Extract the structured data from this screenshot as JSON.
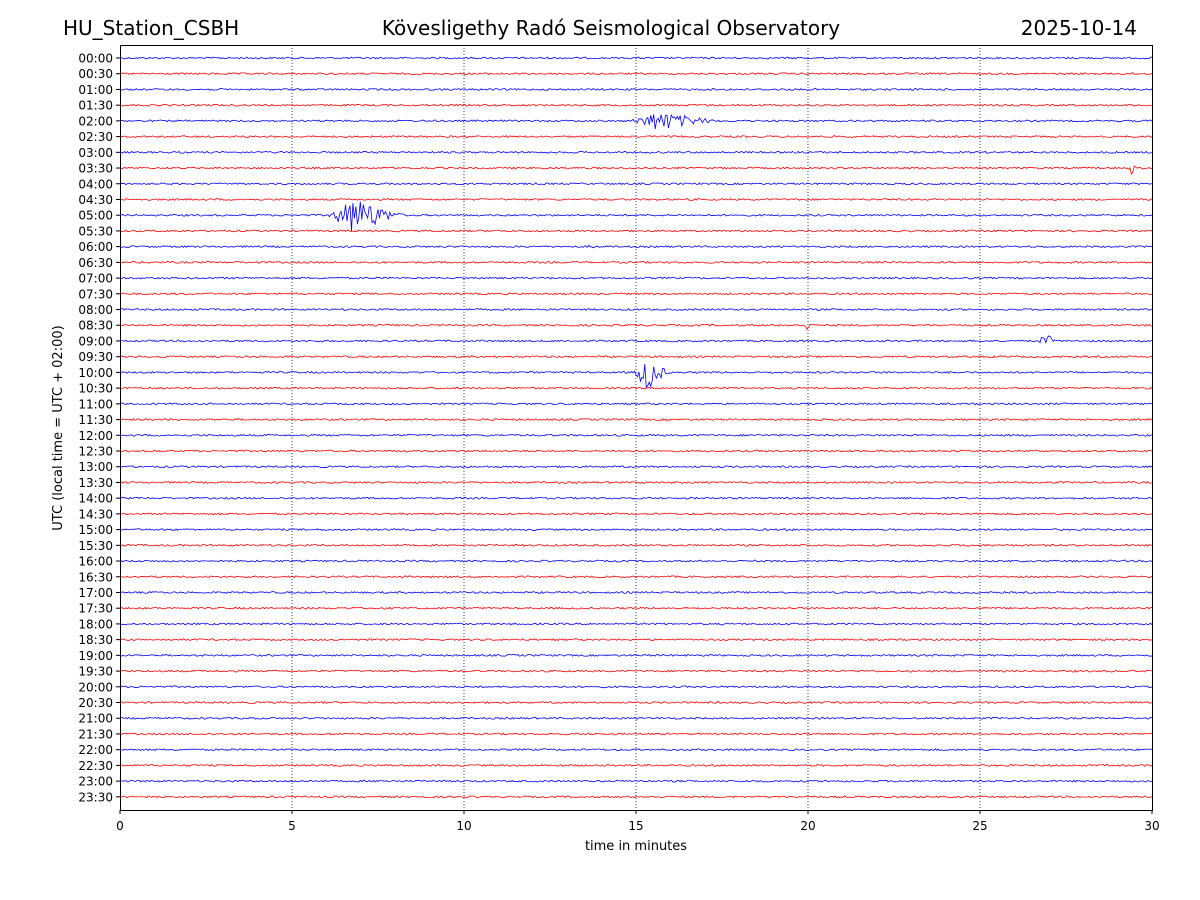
{
  "header": {
    "station": "HU_Station_CSBH",
    "observatory": "Kövesligethy Radó Seismological Observatory",
    "date": "2025-10-14"
  },
  "chart_data": {
    "type": "line",
    "title": "Kövesligethy Radó Seismological Observatory",
    "xlabel": "time in minutes",
    "ylabel": "UTC (local time = UTC + 02:00)",
    "xlim": [
      0,
      30
    ],
    "xticks": [
      "0",
      "5",
      "10",
      "15",
      "20",
      "25",
      "30"
    ],
    "grid_x": [
      5,
      10,
      15,
      20,
      25
    ],
    "row_labels": [
      "00:00",
      "00:30",
      "01:00",
      "01:30",
      "02:00",
      "02:30",
      "03:00",
      "03:30",
      "04:00",
      "04:30",
      "05:00",
      "05:30",
      "06:00",
      "06:30",
      "07:00",
      "07:30",
      "08:00",
      "08:30",
      "09:00",
      "09:30",
      "10:00",
      "10:30",
      "11:00",
      "11:30",
      "12:00",
      "12:30",
      "13:00",
      "13:30",
      "14:00",
      "14:30",
      "15:00",
      "15:30",
      "16:00",
      "16:30",
      "17:00",
      "17:30",
      "18:00",
      "18:30",
      "19:00",
      "19:30",
      "20:00",
      "20:30",
      "21:00",
      "21:30",
      "22:00",
      "22:30",
      "23:00",
      "23:30"
    ],
    "colors": {
      "even_rows": "#0000ff",
      "odd_rows": "#ff0000",
      "grid": "#000080"
    },
    "events": [
      {
        "row": "02:00",
        "start_min": 14.8,
        "peak_min": 15.6,
        "end_min": 17.5,
        "amplitude": 0.5
      },
      {
        "row": "03:30",
        "start_min": 29.3,
        "peak_min": 29.4,
        "end_min": 29.6,
        "amplitude": 0.35
      },
      {
        "row": "05:00",
        "start_min": 6.0,
        "peak_min": 6.8,
        "end_min": 8.3,
        "amplitude": 1.0
      },
      {
        "row": "06:00",
        "start_min": 13.6,
        "peak_min": 13.7,
        "end_min": 13.8,
        "amplitude": 0.15
      },
      {
        "row": "08:30",
        "start_min": 19.9,
        "peak_min": 20.0,
        "end_min": 20.1,
        "amplitude": 0.4
      },
      {
        "row": "09:00",
        "start_min": 26.7,
        "peak_min": 26.9,
        "end_min": 27.2,
        "amplitude": 0.45
      },
      {
        "row": "10:00",
        "start_min": 14.9,
        "peak_min": 15.3,
        "end_min": 16.0,
        "amplitude": 1.0
      }
    ]
  }
}
